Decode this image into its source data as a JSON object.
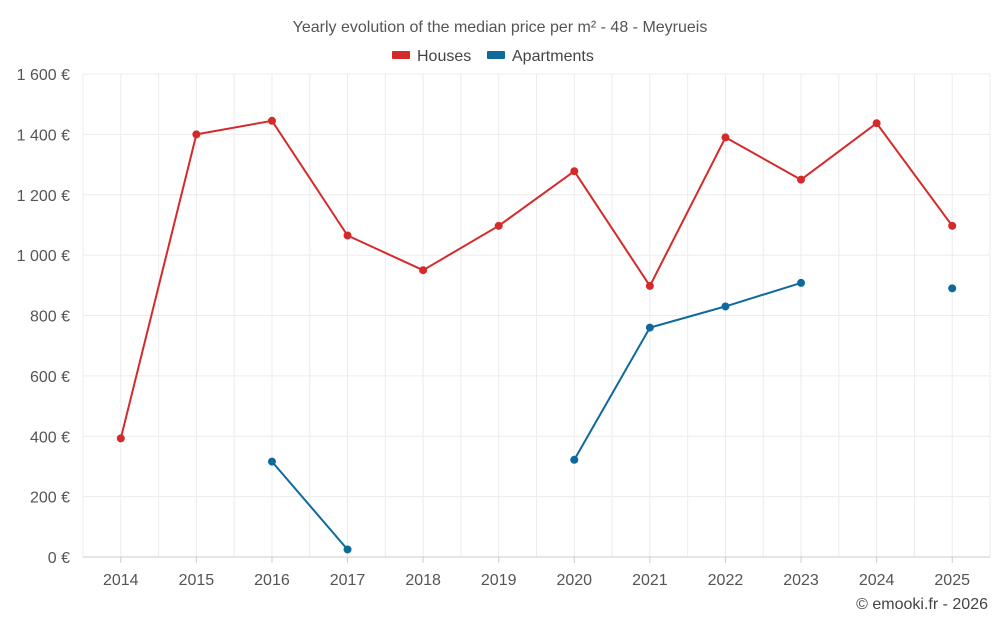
{
  "chart_data": {
    "type": "line",
    "title": "Yearly evolution of the median price per m² - 48 - Meyrueis",
    "categories": [
      "2014",
      "2015",
      "2016",
      "2017",
      "2018",
      "2019",
      "2020",
      "2021",
      "2022",
      "2023",
      "2024",
      "2025"
    ],
    "ylim": [
      0,
      1600
    ],
    "yticks": [
      0,
      200,
      400,
      600,
      800,
      1000,
      1200,
      1400,
      1600
    ],
    "ytick_labels": [
      "0 €",
      "200 €",
      "400 €",
      "600 €",
      "800 €",
      "1 000 €",
      "1 200 €",
      "1 400 €",
      "1 600 €"
    ],
    "grid": true,
    "legend_position": "top-center",
    "series": [
      {
        "name": "Houses",
        "color": "#d52a2a",
        "values": [
          393,
          1400,
          1445,
          1065,
          950,
          1097,
          1278,
          898,
          1390,
          1250,
          1437,
          1097
        ]
      },
      {
        "name": "Apartments",
        "color": "#0f6a9c",
        "values": [
          null,
          null,
          316,
          25,
          null,
          null,
          322,
          760,
          830,
          908,
          null,
          890
        ]
      }
    ]
  },
  "credit": "© emooki.fr - 2026"
}
